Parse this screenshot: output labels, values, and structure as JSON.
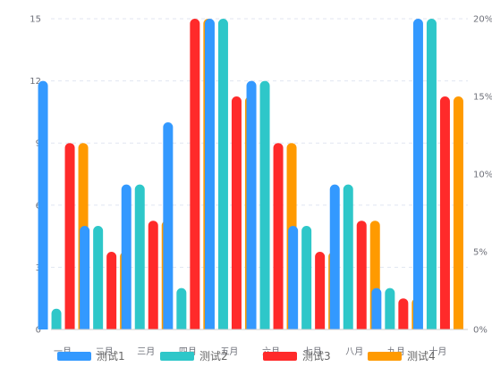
{
  "chart_data": {
    "type": "bar",
    "categories": [
      "一月",
      "二月",
      "三月",
      "四月",
      "五月",
      "六月",
      "七月",
      "八月",
      "九月",
      "十月"
    ],
    "x_tick_labels": [
      "一月",
      "二月",
      "三月",
      "四月",
      "五月",
      "六月",
      "七月",
      "八月",
      "九月",
      "十月"
    ],
    "series": [
      {
        "name": "测试1",
        "color": "#3399ff",
        "axis": "left",
        "values": [
          12,
          5,
          7,
          10,
          15,
          12,
          5,
          7,
          2,
          15
        ]
      },
      {
        "name": "测试2",
        "color": "#2ec7c9",
        "axis": "left",
        "values": [
          1,
          5,
          7,
          2,
          15,
          12,
          5,
          7,
          2,
          15
        ]
      },
      {
        "name": "测试3",
        "color": "#ff2a2a",
        "axis": "right",
        "values": [
          12,
          5,
          7,
          20,
          15,
          12,
          5,
          7,
          2,
          15
        ]
      },
      {
        "name": "测试4",
        "color": "#ff9a00",
        "axis": "right",
        "values": [
          12,
          5,
          7,
          20,
          15,
          12,
          5,
          7,
          2,
          15
        ]
      }
    ],
    "left_axis": {
      "min": 0,
      "max": 15,
      "ticks": [
        "0",
        "3",
        "6",
        "9",
        "12",
        "15"
      ]
    },
    "right_axis": {
      "min": 0,
      "max": 20,
      "ticks": [
        "0%",
        "5%",
        "10%",
        "15%",
        "20%"
      ]
    },
    "grid": true,
    "legend_position": "bottom"
  }
}
